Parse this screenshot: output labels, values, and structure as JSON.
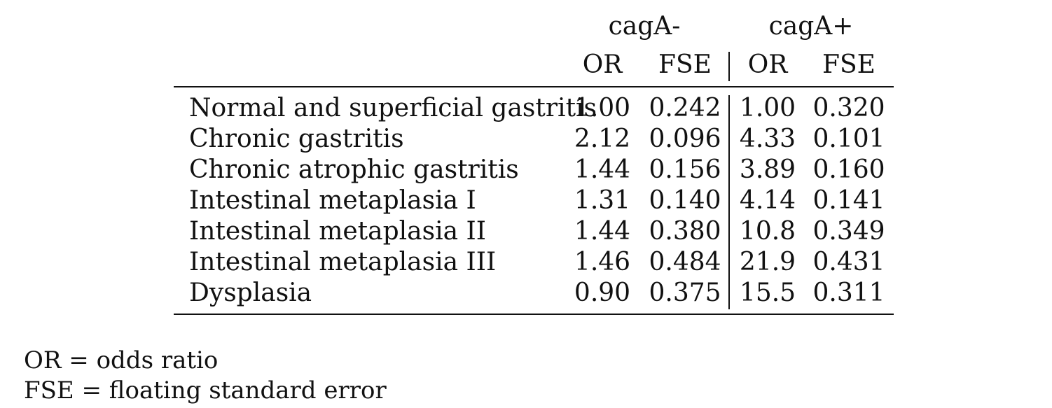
{
  "groups": [
    "cagA-",
    "cagA+"
  ],
  "subheaders": [
    "OR",
    "FSE",
    "OR",
    "FSE"
  ],
  "rows": [
    {
      "label": "Normal and superficial gastritis",
      "or_neg": "1.00",
      "fse_neg": "0.242",
      "or_pos": "1.00",
      "fse_pos": "0.320"
    },
    {
      "label": "Chronic gastritis",
      "or_neg": "2.12",
      "fse_neg": "0.096",
      "or_pos": "4.33",
      "fse_pos": "0.101"
    },
    {
      "label": "Chronic atrophic gastritis",
      "or_neg": "1.44",
      "fse_neg": "0.156",
      "or_pos": "3.89",
      "fse_pos": "0.160"
    },
    {
      "label": "Intestinal metaplasia I",
      "or_neg": "1.31",
      "fse_neg": "0.140",
      "or_pos": "4.14",
      "fse_pos": "0.141"
    },
    {
      "label": "Intestinal metaplasia II",
      "or_neg": "1.44",
      "fse_neg": "0.380",
      "or_pos": "10.8",
      "fse_pos": "0.349"
    },
    {
      "label": "Intestinal metaplasia III",
      "or_neg": "1.46",
      "fse_neg": "0.484",
      "or_pos": "21.9",
      "fse_pos": "0.431"
    },
    {
      "label": "Dysplasia",
      "or_neg": "0.90",
      "fse_neg": "0.375",
      "or_pos": "15.5",
      "fse_pos": "0.311"
    }
  ],
  "notes": [
    "OR = odds ratio",
    "FSE = floating standard error"
  ]
}
